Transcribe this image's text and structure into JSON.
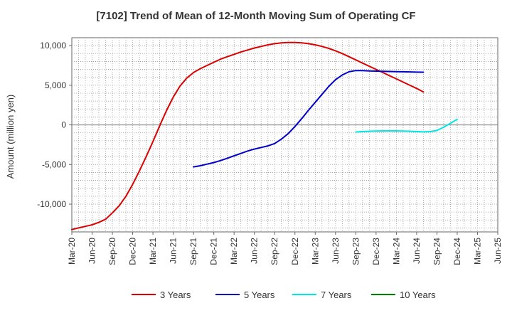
{
  "chart_data": {
    "type": "line",
    "title": "[7102]  Trend of Mean of 12-Month Moving Sum of Operating CF",
    "xlabel": "",
    "ylabel": "Amount (million yen)",
    "ylim": [
      -13500,
      11000
    ],
    "yticks": [
      10000,
      5000,
      0,
      -5000,
      -10000
    ],
    "ytick_labels": [
      "10,000",
      "5,000",
      "0",
      "-5,000",
      "-10,000"
    ],
    "x_tick_labels": [
      "Mar-20",
      "Jun-20",
      "Sep-20",
      "Dec-20",
      "Mar-21",
      "Jun-21",
      "Sep-21",
      "Dec-21",
      "Mar-22",
      "Jun-22",
      "Sep-22",
      "Dec-22",
      "Mar-23",
      "Jun-23",
      "Sep-23",
      "Dec-23",
      "Mar-24",
      "Jun-24",
      "Sep-24",
      "Dec-24",
      "Mar-25",
      "Jun-25"
    ],
    "grid": true,
    "legend_position": "bottom",
    "series": [
      {
        "name": "3 Years",
        "color": "#dd0000",
        "start_index": 0,
        "values": [
          -13200,
          -13000,
          -12800,
          -12600,
          -12300,
          -11900,
          -11100,
          -10200,
          -9000,
          -7500,
          -5800,
          -4000,
          -2100,
          -100,
          1800,
          3500,
          4900,
          5900,
          6600,
          7100,
          7500,
          7900,
          8300,
          8600,
          8900,
          9200,
          9450,
          9700,
          9900,
          10100,
          10250,
          10350,
          10400,
          10400,
          10350,
          10250,
          10100,
          9900,
          9650,
          9350,
          9000,
          8600,
          8200,
          7800,
          7400,
          7000,
          6600,
          6200,
          5800,
          5400,
          5000,
          4600,
          4150
        ]
      },
      {
        "name": "5 Years",
        "color": "#0000cc",
        "start_index": 18,
        "values": [
          -5300,
          -5150,
          -4950,
          -4750,
          -4500,
          -4200,
          -3900,
          -3600,
          -3300,
          -3050,
          -2850,
          -2650,
          -2350,
          -1800,
          -1100,
          -200,
          800,
          1850,
          2850,
          3850,
          4850,
          5700,
          6300,
          6700,
          6850,
          6850,
          6800,
          6780,
          6760,
          6740,
          6720,
          6700,
          6680,
          6660,
          6650
        ]
      },
      {
        "name": "7 Years",
        "color": "#00e5e5",
        "start_index": 42,
        "values": [
          -900,
          -850,
          -800,
          -780,
          -760,
          -760,
          -760,
          -780,
          -800,
          -850,
          -880,
          -850,
          -700,
          -300,
          200,
          700
        ]
      },
      {
        "name": "10 Years",
        "color": "#008000",
        "start_index": 0,
        "values": []
      }
    ]
  }
}
